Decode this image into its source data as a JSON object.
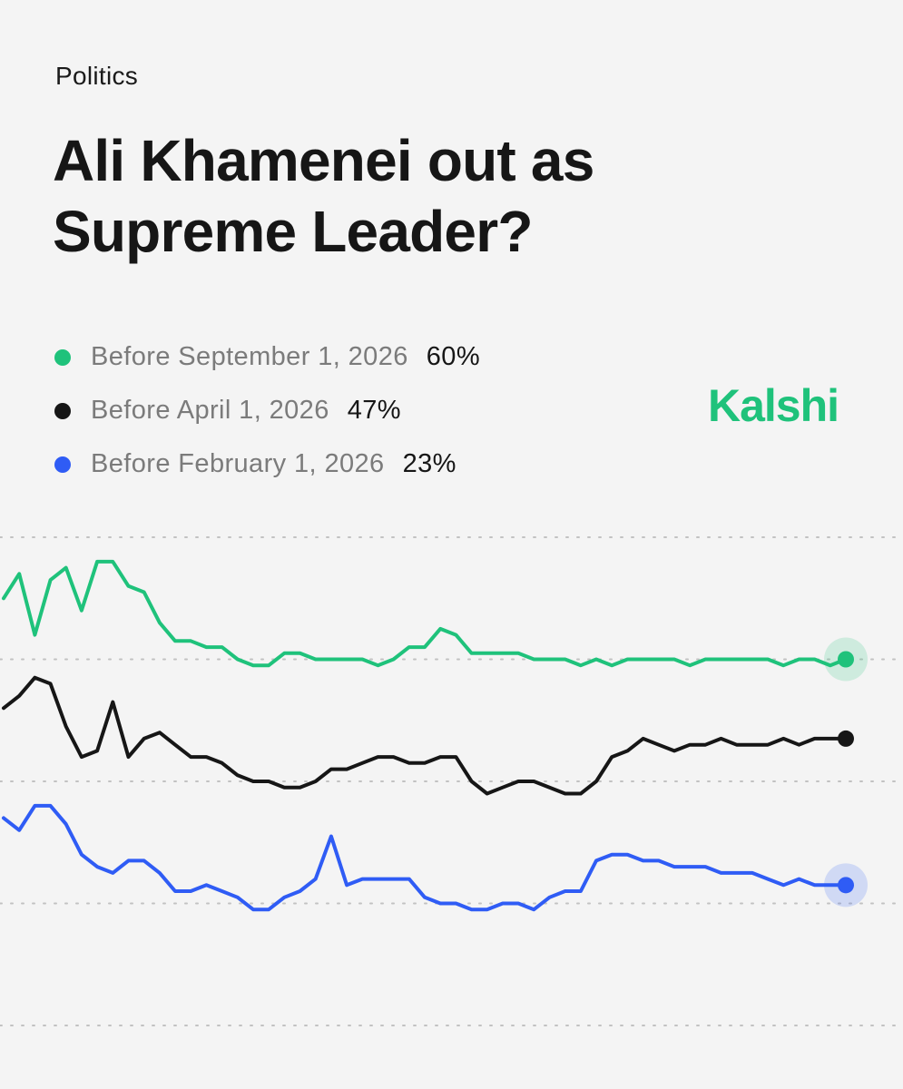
{
  "category": "Politics",
  "title": "Ali Khamenei out as Supreme Leader?",
  "brand": "Kalshi",
  "colors": {
    "green": "#1fc27b",
    "black": "#161616",
    "blue": "#2f5cf5",
    "brand": "#1fc27b"
  },
  "legend": [
    {
      "label": "Before September 1, 2026",
      "value": "60%",
      "color": "#1fc27b"
    },
    {
      "label": "Before April 1, 2026",
      "value": "47%",
      "color": "#161616"
    },
    {
      "label": "Before February 1, 2026",
      "value": "23%",
      "color": "#2f5cf5"
    }
  ],
  "chart_data": {
    "type": "line",
    "ylim": [
      0,
      80
    ],
    "grid": true,
    "legend_position": "top-left",
    "series": [
      {
        "name": "Before September 1, 2026",
        "color": "#1fc27b",
        "values": [
          70,
          74,
          64,
          73,
          75,
          68,
          76,
          76,
          72,
          71,
          66,
          63,
          63,
          62,
          62,
          60,
          59,
          59,
          61,
          61,
          60,
          60,
          60,
          60,
          59,
          60,
          62,
          62,
          65,
          64,
          61,
          61,
          61,
          61,
          60,
          60,
          60,
          59,
          60,
          59,
          60,
          60,
          60,
          60,
          59,
          60,
          60,
          60,
          60,
          60,
          59,
          60,
          60,
          59,
          60
        ]
      },
      {
        "name": "Before April 1, 2026",
        "color": "#161616",
        "values": [
          52,
          54,
          57,
          56,
          49,
          44,
          45,
          53,
          44,
          47,
          48,
          46,
          44,
          44,
          43,
          41,
          40,
          40,
          39,
          39,
          40,
          42,
          42,
          43,
          44,
          44,
          43,
          43,
          44,
          44,
          40,
          38,
          39,
          40,
          40,
          39,
          38,
          38,
          40,
          44,
          45,
          47,
          46,
          45,
          46,
          46,
          47,
          46,
          46,
          46,
          47,
          46,
          47,
          47,
          47
        ]
      },
      {
        "name": "Before February 1, 2026",
        "color": "#2f5cf5",
        "values": [
          34,
          32,
          36,
          36,
          33,
          28,
          26,
          25,
          27,
          27,
          25,
          22,
          22,
          23,
          22,
          21,
          19,
          19,
          21,
          22,
          24,
          31,
          23,
          24,
          24,
          24,
          24,
          21,
          20,
          20,
          19,
          19,
          20,
          20,
          19,
          21,
          22,
          22,
          27,
          28,
          28,
          27,
          27,
          26,
          26,
          26,
          25,
          25,
          25,
          24,
          23,
          24,
          23,
          23,
          23
        ]
      }
    ]
  }
}
